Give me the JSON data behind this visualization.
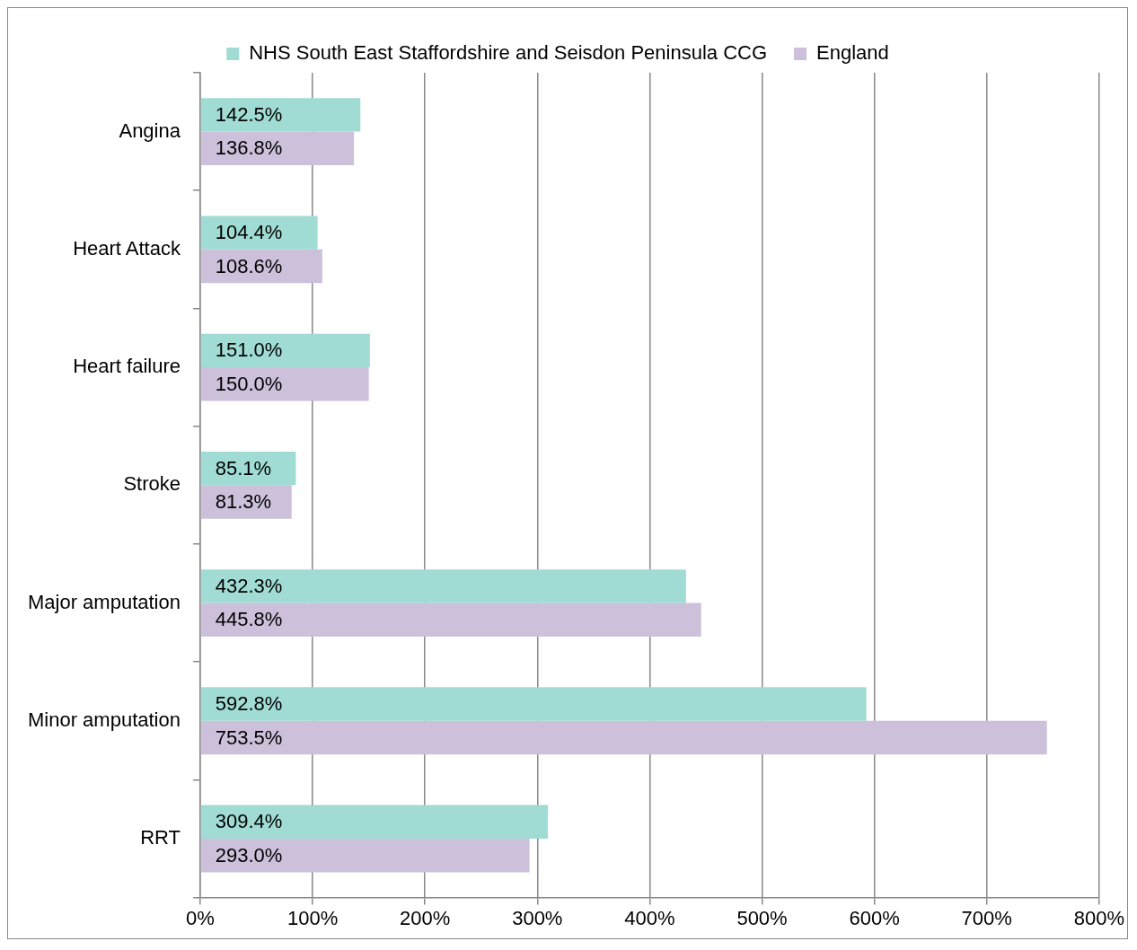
{
  "chart_data": {
    "type": "bar",
    "orientation": "horizontal",
    "categories": [
      "Angina",
      "Heart Attack",
      "Heart failure",
      "Stroke",
      "Major amputation",
      "Minor amputation",
      "RRT"
    ],
    "series": [
      {
        "name": "NHS South East Staffordshire and Seisdon Peninsula CCG",
        "color": "#a0dcd4",
        "values": [
          142.5,
          104.4,
          151.0,
          85.1,
          432.3,
          592.8,
          309.4
        ],
        "value_labels": [
          "142.5%",
          "104.4%",
          "151.0%",
          "85.1%",
          "432.3%",
          "592.8%",
          "309.4%"
        ]
      },
      {
        "name": "England",
        "color": "#ccc0da",
        "values": [
          136.8,
          108.6,
          150.0,
          81.3,
          445.8,
          753.5,
          293.0
        ],
        "value_labels": [
          "136.8%",
          "108.6%",
          "150.0%",
          "81.3%",
          "445.8%",
          "753.5%",
          "293.0%"
        ]
      }
    ],
    "xlim": [
      0,
      800
    ],
    "xticks": [
      {
        "value": 0,
        "label": "0%"
      },
      {
        "value": 100,
        "label": "100%"
      },
      {
        "value": 200,
        "label": "200%"
      },
      {
        "value": 300,
        "label": "300%"
      },
      {
        "value": 400,
        "label": "400%"
      },
      {
        "value": 500,
        "label": "500%"
      },
      {
        "value": 600,
        "label": "600%"
      },
      {
        "value": 700,
        "label": "700%"
      },
      {
        "value": 800,
        "label": "800%"
      }
    ],
    "grid": "x",
    "legend": "top"
  }
}
